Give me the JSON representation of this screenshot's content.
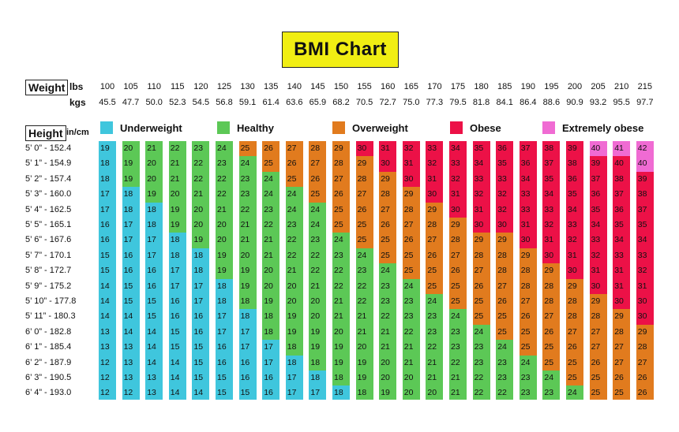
{
  "title": "BMI Chart",
  "weight_label": "Weight",
  "lbs_unit": "lbs",
  "kgs_unit": "kgs",
  "height_label": "Height",
  "height_unit": "in/cm",
  "colors": {
    "underweight": "#3fc6dd",
    "healthy": "#5cc856",
    "overweight": "#e17b1e",
    "obese": "#ec1147",
    "extremely_obese": "#f06bd3"
  },
  "legend": [
    {
      "key": "underweight",
      "label": "Underweight"
    },
    {
      "key": "healthy",
      "label": "Healthy"
    },
    {
      "key": "overweight",
      "label": "Overweight"
    },
    {
      "key": "obese",
      "label": "Obese"
    },
    {
      "key": "extremely_obese",
      "label": "Extremely obese"
    }
  ],
  "chart_data": {
    "type": "table",
    "title": "BMI Chart",
    "weights_lbs": [
      "100",
      "105",
      "110",
      "115",
      "120",
      "125",
      "130",
      "135",
      "140",
      "145",
      "150",
      "155",
      "160",
      "165",
      "170",
      "175",
      "180",
      "185",
      "190",
      "195",
      "200",
      "205",
      "210",
      "215"
    ],
    "weights_kgs": [
      "45.5",
      "47.7",
      "50.0",
      "52.3",
      "54.5",
      "56.8",
      "59.1",
      "61.4",
      "63.6",
      "65.9",
      "68.2",
      "70.5",
      "72.7",
      "75.0",
      "77.3",
      "79.5",
      "81.8",
      "84.1",
      "86.4",
      "88.6",
      "90.9",
      "93.2",
      "95.5",
      "97.7"
    ],
    "heights": [
      "5’ 0” - 152.4",
      "5’ 1” - 154.9",
      "5’ 2” - 157.4",
      "5’ 3” - 160.0",
      "5’ 4” - 162.5",
      "5’ 5” - 165.1",
      "5’ 6” - 167.6",
      "5’ 7” - 170.1",
      "5’ 8” - 172.7",
      "5’ 9” - 175.2",
      "5’ 10” - 177.8",
      "5’ 11” - 180.3",
      "6’ 0” - 182.8",
      "6’ 1” - 185.4",
      "6’ 2” - 187.9",
      "6’ 3” - 190.5",
      "6’ 4” - 193.0"
    ],
    "bmi": [
      [
        19,
        20,
        21,
        22,
        23,
        24,
        25,
        26,
        27,
        28,
        29,
        30,
        31,
        32,
        33,
        34,
        35,
        36,
        37,
        38,
        39,
        40,
        41,
        42
      ],
      [
        18,
        19,
        20,
        21,
        22,
        23,
        24,
        25,
        26,
        27,
        28,
        29,
        30,
        31,
        32,
        33,
        34,
        35,
        36,
        37,
        38,
        39,
        40,
        40
      ],
      [
        18,
        19,
        20,
        21,
        22,
        22,
        23,
        24,
        25,
        26,
        27,
        28,
        29,
        30,
        31,
        32,
        33,
        33,
        34,
        35,
        36,
        37,
        38,
        39
      ],
      [
        17,
        18,
        19,
        20,
        21,
        22,
        23,
        24,
        24,
        25,
        26,
        27,
        28,
        29,
        30,
        31,
        32,
        32,
        33,
        34,
        35,
        36,
        37,
        38
      ],
      [
        17,
        18,
        18,
        19,
        20,
        21,
        22,
        23,
        24,
        24,
        25,
        26,
        27,
        28,
        29,
        30,
        31,
        32,
        33,
        33,
        34,
        35,
        36,
        37
      ],
      [
        16,
        17,
        18,
        19,
        20,
        20,
        21,
        22,
        23,
        24,
        25,
        25,
        26,
        27,
        28,
        29,
        30,
        30,
        31,
        32,
        33,
        34,
        35,
        35
      ],
      [
        16,
        17,
        17,
        18,
        19,
        20,
        21,
        21,
        22,
        23,
        24,
        25,
        25,
        26,
        27,
        28,
        29,
        29,
        30,
        31,
        32,
        33,
        34,
        34
      ],
      [
        15,
        16,
        17,
        18,
        18,
        19,
        20,
        21,
        22,
        22,
        23,
        24,
        25,
        25,
        26,
        27,
        28,
        28,
        29,
        30,
        31,
        32,
        33,
        33
      ],
      [
        15,
        16,
        16,
        17,
        18,
        19,
        19,
        20,
        21,
        22,
        22,
        23,
        24,
        25,
        25,
        26,
        27,
        28,
        28,
        29,
        30,
        31,
        31,
        32
      ],
      [
        14,
        15,
        16,
        17,
        17,
        18,
        19,
        20,
        20,
        21,
        22,
        22,
        23,
        24,
        25,
        25,
        26,
        27,
        28,
        28,
        29,
        30,
        31,
        31
      ],
      [
        14,
        15,
        15,
        16,
        17,
        18,
        18,
        19,
        20,
        20,
        21,
        22,
        23,
        23,
        24,
        25,
        25,
        26,
        27,
        28,
        28,
        29,
        30,
        30
      ],
      [
        14,
        14,
        15,
        16,
        16,
        17,
        18,
        18,
        19,
        20,
        21,
        21,
        22,
        23,
        23,
        24,
        25,
        25,
        26,
        27,
        28,
        28,
        29,
        30
      ],
      [
        13,
        14,
        14,
        15,
        16,
        17,
        17,
        18,
        19,
        19,
        20,
        21,
        21,
        22,
        23,
        23,
        24,
        25,
        25,
        26,
        27,
        27,
        28,
        29
      ],
      [
        13,
        13,
        14,
        15,
        15,
        16,
        17,
        17,
        18,
        19,
        19,
        20,
        21,
        21,
        22,
        23,
        23,
        24,
        25,
        25,
        26,
        27,
        27,
        28
      ],
      [
        12,
        13,
        14,
        14,
        15,
        16,
        16,
        17,
        18,
        18,
        19,
        19,
        20,
        21,
        21,
        22,
        23,
        23,
        24,
        25,
        25,
        26,
        27,
        27
      ],
      [
        12,
        13,
        13,
        14,
        15,
        15,
        16,
        16,
        17,
        18,
        18,
        19,
        20,
        20,
        21,
        21,
        22,
        23,
        23,
        24,
        25,
        25,
        26,
        26
      ],
      [
        12,
        12,
        13,
        14,
        14,
        15,
        15,
        16,
        17,
        17,
        18,
        18,
        19,
        20,
        20,
        21,
        22,
        22,
        23,
        23,
        24,
        25,
        25,
        26
      ]
    ],
    "categories": [
      [
        "u",
        "h",
        "h",
        "h",
        "h",
        "h",
        "o",
        "o",
        "o",
        "o",
        "o",
        "b",
        "b",
        "b",
        "b",
        "b",
        "b",
        "b",
        "b",
        "b",
        "b",
        "e",
        "e",
        "e"
      ],
      [
        "u",
        "h",
        "h",
        "h",
        "h",
        "h",
        "h",
        "o",
        "o",
        "o",
        "o",
        "o",
        "b",
        "b",
        "b",
        "b",
        "b",
        "b",
        "b",
        "b",
        "b",
        "b",
        "b",
        "e"
      ],
      [
        "u",
        "h",
        "h",
        "h",
        "h",
        "h",
        "h",
        "h",
        "o",
        "o",
        "o",
        "o",
        "o",
        "b",
        "b",
        "b",
        "b",
        "b",
        "b",
        "b",
        "b",
        "b",
        "b",
        "b"
      ],
      [
        "u",
        "u",
        "h",
        "h",
        "h",
        "h",
        "h",
        "h",
        "h",
        "o",
        "o",
        "o",
        "o",
        "o",
        "b",
        "b",
        "b",
        "b",
        "b",
        "b",
        "b",
        "b",
        "b",
        "b"
      ],
      [
        "u",
        "u",
        "u",
        "h",
        "h",
        "h",
        "h",
        "h",
        "h",
        "h",
        "o",
        "o",
        "o",
        "o",
        "o",
        "b",
        "b",
        "b",
        "b",
        "b",
        "b",
        "b",
        "b",
        "b"
      ],
      [
        "u",
        "u",
        "u",
        "h",
        "h",
        "h",
        "h",
        "h",
        "h",
        "h",
        "o",
        "o",
        "o",
        "o",
        "o",
        "o",
        "b",
        "b",
        "b",
        "b",
        "b",
        "b",
        "b",
        "b"
      ],
      [
        "u",
        "u",
        "u",
        "u",
        "h",
        "h",
        "h",
        "h",
        "h",
        "h",
        "h",
        "o",
        "o",
        "o",
        "o",
        "o",
        "o",
        "o",
        "b",
        "b",
        "b",
        "b",
        "b",
        "b"
      ],
      [
        "u",
        "u",
        "u",
        "u",
        "u",
        "h",
        "h",
        "h",
        "h",
        "h",
        "h",
        "h",
        "o",
        "o",
        "o",
        "o",
        "o",
        "o",
        "o",
        "b",
        "b",
        "b",
        "b",
        "b"
      ],
      [
        "u",
        "u",
        "u",
        "u",
        "u",
        "h",
        "h",
        "h",
        "h",
        "h",
        "h",
        "h",
        "h",
        "o",
        "o",
        "o",
        "o",
        "o",
        "o",
        "o",
        "b",
        "b",
        "b",
        "b"
      ],
      [
        "u",
        "u",
        "u",
        "u",
        "u",
        "u",
        "h",
        "h",
        "h",
        "h",
        "h",
        "h",
        "h",
        "h",
        "o",
        "o",
        "o",
        "o",
        "o",
        "o",
        "o",
        "b",
        "b",
        "b"
      ],
      [
        "u",
        "u",
        "u",
        "u",
        "u",
        "u",
        "h",
        "h",
        "h",
        "h",
        "h",
        "h",
        "h",
        "h",
        "h",
        "o",
        "o",
        "o",
        "o",
        "o",
        "o",
        "o",
        "b",
        "b"
      ],
      [
        "u",
        "u",
        "u",
        "u",
        "u",
        "u",
        "u",
        "h",
        "h",
        "h",
        "h",
        "h",
        "h",
        "h",
        "h",
        "h",
        "o",
        "o",
        "o",
        "o",
        "o",
        "o",
        "o",
        "b"
      ],
      [
        "u",
        "u",
        "u",
        "u",
        "u",
        "u",
        "u",
        "h",
        "h",
        "h",
        "h",
        "h",
        "h",
        "h",
        "h",
        "h",
        "h",
        "o",
        "o",
        "o",
        "o",
        "o",
        "o",
        "o"
      ],
      [
        "u",
        "u",
        "u",
        "u",
        "u",
        "u",
        "u",
        "u",
        "h",
        "h",
        "h",
        "h",
        "h",
        "h",
        "h",
        "h",
        "h",
        "h",
        "o",
        "o",
        "o",
        "o",
        "o",
        "o"
      ],
      [
        "u",
        "u",
        "u",
        "u",
        "u",
        "u",
        "u",
        "u",
        "u",
        "h",
        "h",
        "h",
        "h",
        "h",
        "h",
        "h",
        "h",
        "h",
        "h",
        "o",
        "o",
        "o",
        "o",
        "o"
      ],
      [
        "u",
        "u",
        "u",
        "u",
        "u",
        "u",
        "u",
        "u",
        "u",
        "u",
        "h",
        "h",
        "h",
        "h",
        "h",
        "h",
        "h",
        "h",
        "h",
        "h",
        "o",
        "o",
        "o",
        "o"
      ],
      [
        "u",
        "u",
        "u",
        "u",
        "u",
        "u",
        "u",
        "u",
        "u",
        "u",
        "u",
        "h",
        "h",
        "h",
        "h",
        "h",
        "h",
        "h",
        "h",
        "h",
        "h",
        "o",
        "o",
        "o"
      ]
    ]
  }
}
